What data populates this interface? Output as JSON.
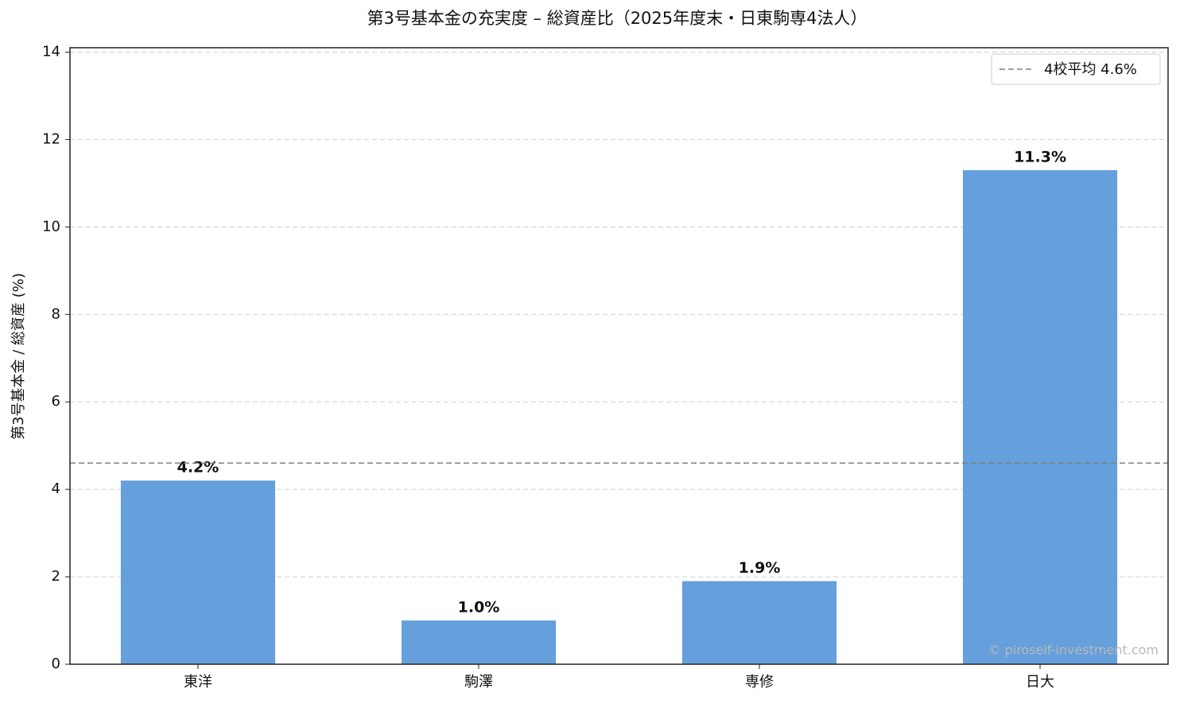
{
  "chart_data": {
    "type": "bar",
    "title": "第3号基本金の充実度 – 総資産比（2025年度末・日東駒専4法人）",
    "y_label": "第3号基本金 / 総資産 (%)",
    "categories": [
      "東洋",
      "駒澤",
      "専修",
      "日大"
    ],
    "values": [
      4.2,
      1.0,
      1.9,
      11.3
    ],
    "value_labels": [
      "4.2%",
      "1.0%",
      "1.9%",
      "11.3%"
    ],
    "color": "#659fdc",
    "ylim": [
      0,
      14.1
    ],
    "yticks": [
      0,
      2,
      4,
      6,
      8,
      10,
      12,
      14
    ],
    "grid": true,
    "reference_line": {
      "value": 4.6,
      "label": "4校平均 4.6%",
      "color": "#808080"
    },
    "legend": "upper right",
    "watermark": "© piroself-investment.com"
  }
}
